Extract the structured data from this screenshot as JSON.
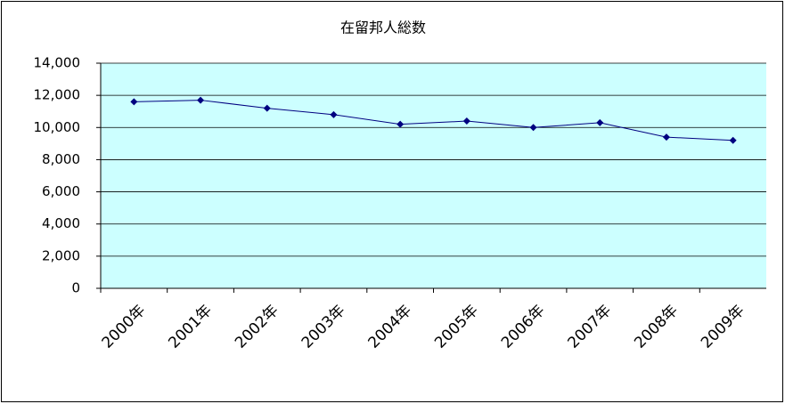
{
  "chart_data": {
    "type": "line",
    "title": "在留邦人総数",
    "categories": [
      "2000年",
      "2001年",
      "2002年",
      "2003年",
      "2004年",
      "2005年",
      "2006年",
      "2007年",
      "2008年",
      "2009年"
    ],
    "values": [
      11600,
      11700,
      11200,
      10800,
      10200,
      10400,
      10000,
      10300,
      9400,
      9200
    ],
    "color": "#000080",
    "ylim": [
      0,
      14000
    ],
    "yticks": [
      0,
      {
        "value": 2000,
        "label": "2,000"
      },
      {
        "value": 4000,
        "label": "4,000"
      },
      {
        "value": 6000,
        "label": "6,000"
      },
      {
        "value": 8000,
        "label": "8,000"
      },
      {
        "value": 10000,
        "label": "10,000"
      },
      {
        "value": 12000,
        "label": "12,000"
      },
      {
        "value": 14000,
        "label": "14,000"
      }
    ],
    "grid": true
  }
}
